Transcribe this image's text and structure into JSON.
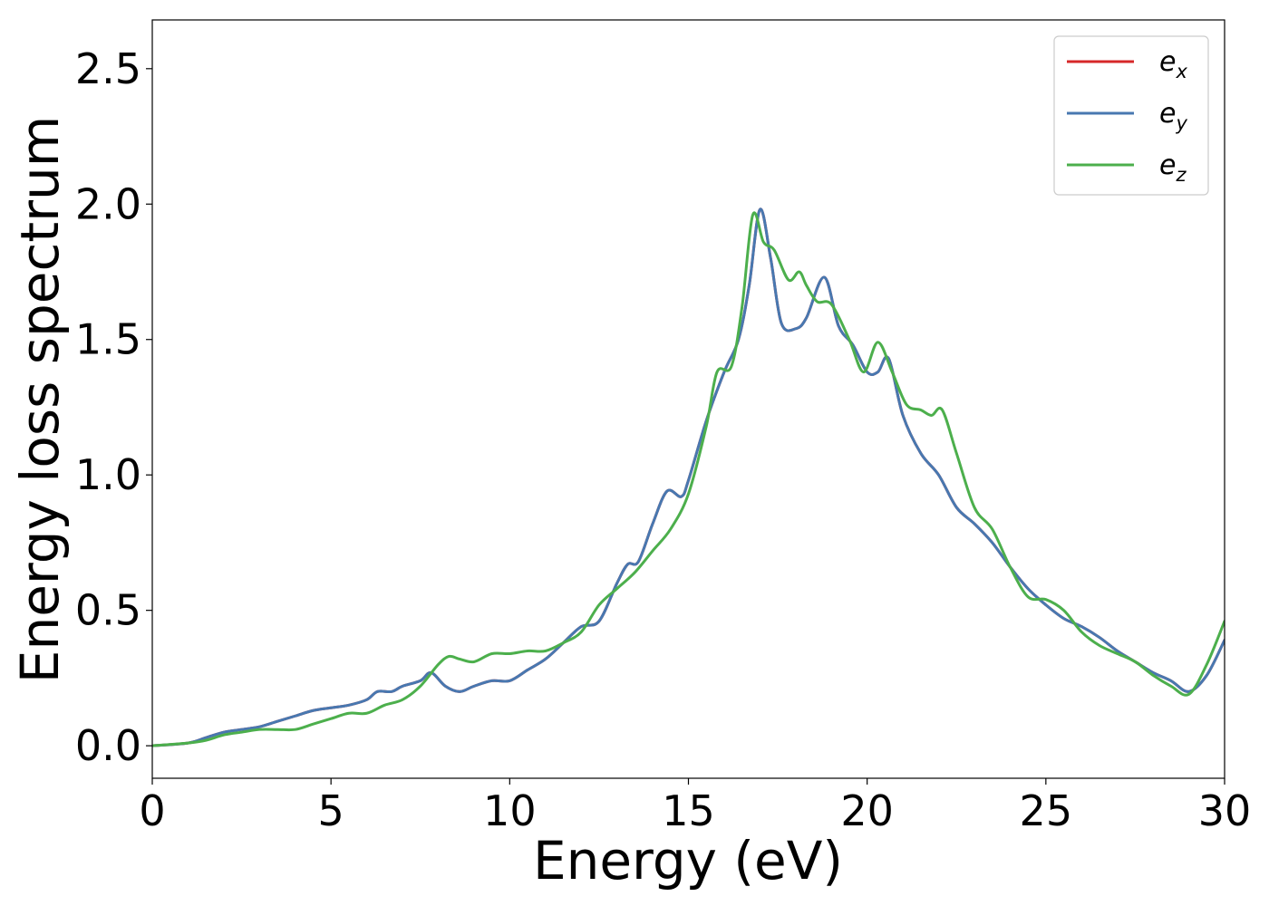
{
  "chart_data": {
    "type": "line",
    "title": "",
    "xlabel": "Energy (eV)",
    "ylabel": "Energy loss spectrum",
    "xlim": [
      0,
      30
    ],
    "ylim": [
      -0.12,
      2.68
    ],
    "xticks": [
      0,
      5,
      10,
      15,
      20,
      25,
      30
    ],
    "xtick_labels": [
      "0",
      "5",
      "10",
      "15",
      "20",
      "25",
      "30"
    ],
    "yticks": [
      0.0,
      0.5,
      1.0,
      1.5,
      2.0,
      2.5
    ],
    "ytick_labels": [
      "0.0",
      "0.5",
      "1.0",
      "1.5",
      "2.0",
      "2.5"
    ],
    "grid": false,
    "legend_position": "top-right",
    "series": [
      {
        "name": "e_x",
        "label_main": "e",
        "label_sub": "x",
        "color": "#d62728",
        "x": [
          0,
          1,
          1.5,
          2,
          2.5,
          3,
          3.5,
          4,
          4.5,
          5,
          5.5,
          6,
          6.3,
          6.7,
          7,
          7.5,
          7.8,
          8.2,
          8.6,
          9,
          9.5,
          10,
          10.5,
          11,
          11.5,
          12,
          12.5,
          13,
          13.3,
          13.6,
          14,
          14.4,
          14.8,
          15,
          15.5,
          16,
          16.4,
          16.7,
          17,
          17.3,
          17.6,
          18,
          18.3,
          18.8,
          19.2,
          19.6,
          20,
          20.3,
          20.6,
          21,
          21.5,
          22,
          22.5,
          23,
          23.5,
          24,
          24.5,
          25,
          25.5,
          26,
          26.5,
          27,
          27.5,
          28,
          28.5,
          29,
          29.5,
          30
        ],
        "y": [
          0.0,
          0.01,
          0.03,
          0.05,
          0.06,
          0.07,
          0.09,
          0.11,
          0.13,
          0.14,
          0.15,
          0.17,
          0.2,
          0.2,
          0.22,
          0.24,
          0.27,
          0.22,
          0.2,
          0.22,
          0.24,
          0.24,
          0.28,
          0.32,
          0.38,
          0.44,
          0.46,
          0.6,
          0.67,
          0.68,
          0.82,
          0.94,
          0.92,
          0.98,
          1.2,
          1.38,
          1.5,
          1.7,
          1.98,
          1.8,
          1.56,
          1.54,
          1.58,
          1.73,
          1.55,
          1.48,
          1.38,
          1.38,
          1.43,
          1.22,
          1.08,
          1.0,
          0.88,
          0.82,
          0.75,
          0.66,
          0.58,
          0.52,
          0.47,
          0.44,
          0.4,
          0.35,
          0.31,
          0.27,
          0.24,
          0.2,
          0.26,
          0.39
        ]
      },
      {
        "name": "e_y",
        "label_main": "e",
        "label_sub": "y",
        "color": "#4878b0",
        "x": [
          0,
          1,
          1.5,
          2,
          2.5,
          3,
          3.5,
          4,
          4.5,
          5,
          5.5,
          6,
          6.3,
          6.7,
          7,
          7.5,
          7.8,
          8.2,
          8.6,
          9,
          9.5,
          10,
          10.5,
          11,
          11.5,
          12,
          12.5,
          13,
          13.3,
          13.6,
          14,
          14.4,
          14.8,
          15,
          15.5,
          16,
          16.4,
          16.7,
          17,
          17.3,
          17.6,
          18,
          18.3,
          18.8,
          19.2,
          19.6,
          20,
          20.3,
          20.6,
          21,
          21.5,
          22,
          22.5,
          23,
          23.5,
          24,
          24.5,
          25,
          25.5,
          26,
          26.5,
          27,
          27.5,
          28,
          28.5,
          29,
          29.5,
          30
        ],
        "y": [
          0.0,
          0.01,
          0.03,
          0.05,
          0.06,
          0.07,
          0.09,
          0.11,
          0.13,
          0.14,
          0.15,
          0.17,
          0.2,
          0.2,
          0.22,
          0.24,
          0.27,
          0.22,
          0.2,
          0.22,
          0.24,
          0.24,
          0.28,
          0.32,
          0.38,
          0.44,
          0.46,
          0.6,
          0.67,
          0.68,
          0.82,
          0.94,
          0.92,
          0.98,
          1.2,
          1.38,
          1.5,
          1.7,
          1.98,
          1.8,
          1.56,
          1.54,
          1.58,
          1.73,
          1.55,
          1.48,
          1.38,
          1.38,
          1.43,
          1.22,
          1.08,
          1.0,
          0.88,
          0.82,
          0.75,
          0.66,
          0.58,
          0.52,
          0.47,
          0.44,
          0.4,
          0.35,
          0.31,
          0.27,
          0.24,
          0.2,
          0.26,
          0.39
        ]
      },
      {
        "name": "e_z",
        "label_main": "e",
        "label_sub": "z",
        "color": "#4caf4c",
        "x": [
          0,
          1,
          1.5,
          2,
          2.5,
          3,
          3.5,
          4,
          4.5,
          5,
          5.5,
          6,
          6.5,
          7,
          7.5,
          8,
          8.3,
          8.6,
          9,
          9.5,
          10,
          10.5,
          11,
          11.5,
          12,
          12.5,
          13,
          13.5,
          14,
          14.5,
          15,
          15.5,
          15.8,
          16.2,
          16.5,
          16.8,
          17.1,
          17.4,
          17.8,
          18.1,
          18.3,
          18.6,
          19,
          19.5,
          19.9,
          20.3,
          20.7,
          21.1,
          21.5,
          21.8,
          22.1,
          22.5,
          23,
          23.5,
          24,
          24.5,
          25,
          25.5,
          26,
          26.5,
          27,
          27.5,
          28,
          28.5,
          29,
          29.5,
          30
        ],
        "y": [
          0.0,
          0.01,
          0.02,
          0.04,
          0.05,
          0.06,
          0.06,
          0.06,
          0.08,
          0.1,
          0.12,
          0.12,
          0.15,
          0.17,
          0.22,
          0.3,
          0.33,
          0.32,
          0.31,
          0.34,
          0.34,
          0.35,
          0.35,
          0.38,
          0.42,
          0.52,
          0.58,
          0.64,
          0.72,
          0.8,
          0.93,
          1.18,
          1.38,
          1.4,
          1.62,
          1.96,
          1.86,
          1.83,
          1.72,
          1.75,
          1.7,
          1.64,
          1.63,
          1.5,
          1.38,
          1.49,
          1.38,
          1.26,
          1.24,
          1.22,
          1.24,
          1.08,
          0.88,
          0.8,
          0.66,
          0.55,
          0.54,
          0.5,
          0.42,
          0.37,
          0.34,
          0.31,
          0.26,
          0.22,
          0.19,
          0.3,
          0.46
        ]
      }
    ]
  }
}
